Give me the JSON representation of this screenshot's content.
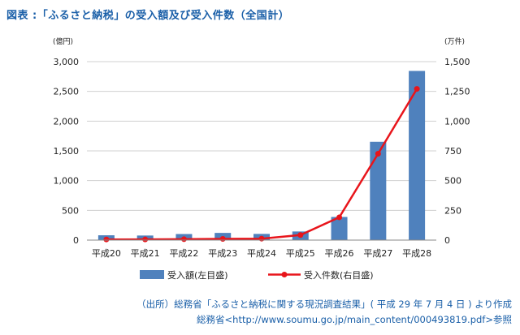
{
  "title": "図表 :「ふるさと納税」の受入額及び受入件数（全国計）",
  "source_line1": "（出所）総務省「ふるさと納税に関する現況調査結果」( 平成 29 年 7 月 4 日 ) より作成",
  "source_line2": "総務省<http://www.soumu.go.jp/main_content/000493819.pdf>参照",
  "colors": {
    "bar": "#4f81bd",
    "line": "#e8151b",
    "title": "#1a5fa8",
    "grid": "#d0d0d0"
  },
  "chart_data": {
    "type": "bar+line",
    "categories": [
      "平成20",
      "平成21",
      "平成22",
      "平成23",
      "平成24",
      "平成25",
      "平成26",
      "平成27",
      "平成28"
    ],
    "series": [
      {
        "name": "受入額(左目盛)",
        "type": "bar",
        "axis": "left",
        "values": [
          81,
          77,
          102,
          121,
          104,
          145,
          389,
          1653,
          2844
        ]
      },
      {
        "name": "受入件数(右目盛)",
        "type": "line",
        "axis": "right",
        "values": [
          5.4,
          5.6,
          8.0,
          10.1,
          12.2,
          42.7,
          191.3,
          726.0,
          1271.1
        ]
      }
    ],
    "y_left": {
      "unit": "(億円)",
      "ylim": [
        0,
        3000
      ],
      "ticks": [
        "0",
        "500",
        "1,000",
        "1,500",
        "2,000",
        "2,500",
        "3,000"
      ]
    },
    "y_right": {
      "unit": "(万件)",
      "ylim": [
        0,
        1500
      ],
      "ticks": [
        "0",
        "250",
        "500",
        "750",
        "1,000",
        "1,250",
        "1,500"
      ]
    },
    "grid": true,
    "legend_position": "bottom"
  }
}
